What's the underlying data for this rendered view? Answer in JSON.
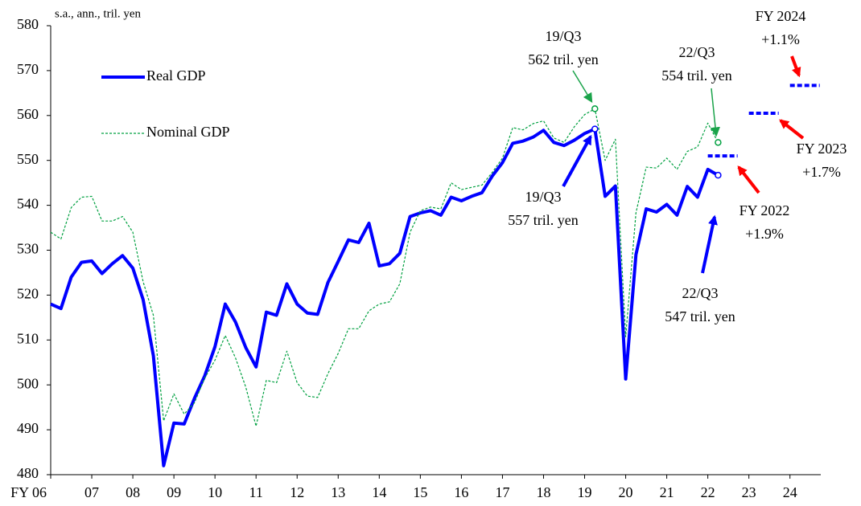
{
  "chart_data": {
    "type": "line",
    "unit_label": "s.a., ann., tril.  yen",
    "xlim": [
      2006,
      2024.75
    ],
    "xticks": [
      {
        "value": 2006,
        "label": "FY 06"
      },
      {
        "value": 2007,
        "label": "07"
      },
      {
        "value": 2008,
        "label": "08"
      },
      {
        "value": 2009,
        "label": "09"
      },
      {
        "value": 2010,
        "label": "10"
      },
      {
        "value": 2011,
        "label": "11"
      },
      {
        "value": 2012,
        "label": "12"
      },
      {
        "value": 2013,
        "label": "13"
      },
      {
        "value": 2014,
        "label": "14"
      },
      {
        "value": 2015,
        "label": "15"
      },
      {
        "value": 2016,
        "label": "16"
      },
      {
        "value": 2017,
        "label": "17"
      },
      {
        "value": 2018,
        "label": "18"
      },
      {
        "value": 2019,
        "label": "19"
      },
      {
        "value": 2020,
        "label": "20"
      },
      {
        "value": 2021,
        "label": "21"
      },
      {
        "value": 2022,
        "label": "22"
      },
      {
        "value": 2023,
        "label": "23"
      },
      {
        "value": 2024,
        "label": "24"
      }
    ],
    "ylim": [
      480,
      580
    ],
    "yticks": [
      480,
      490,
      500,
      510,
      520,
      530,
      540,
      550,
      560,
      570,
      580
    ],
    "x": [
      2006,
      2006.25,
      2006.5,
      2006.75,
      2007,
      2007.25,
      2007.5,
      2007.75,
      2008,
      2008.25,
      2008.5,
      2008.75,
      2009,
      2009.25,
      2009.5,
      2009.75,
      2010,
      2010.25,
      2010.5,
      2010.75,
      2011,
      2011.25,
      2011.5,
      2011.75,
      2012,
      2012.25,
      2012.5,
      2012.75,
      2013,
      2013.25,
      2013.5,
      2013.75,
      2014,
      2014.25,
      2014.5,
      2014.75,
      2015,
      2015.25,
      2015.5,
      2015.75,
      2016,
      2016.25,
      2016.5,
      2016.75,
      2017,
      2017.25,
      2017.5,
      2017.75,
      2018,
      2018.25,
      2018.5,
      2018.75,
      2019,
      2019.25,
      2019.5,
      2019.75,
      2020,
      2020.25,
      2020.5,
      2020.75,
      2021,
      2021.25,
      2021.5,
      2021.75,
      2022,
      2022.25
    ],
    "series": [
      {
        "name": "Real GDP",
        "color": "#0000ff",
        "values": [
          518,
          517,
          524,
          527.3,
          527.6,
          524.8,
          527,
          528.8,
          526,
          519,
          506.5,
          482,
          491.5,
          491.3,
          497,
          502,
          508.5,
          518,
          514,
          508.3,
          504,
          516.2,
          515.5,
          522.5,
          518,
          516,
          515.7,
          522.8,
          527.5,
          532.3,
          531.7,
          536,
          526.5,
          527,
          529.3,
          537.5,
          538.3,
          538.8,
          537.8,
          541.8,
          541,
          542,
          542.8,
          546.5,
          549.5,
          553.8,
          554.3,
          555.2,
          556.7,
          554,
          553.3,
          554.5,
          556,
          557,
          542,
          544.3,
          501.3,
          529,
          539.2,
          538.5,
          540.2,
          537.8,
          544.2,
          541.8,
          548,
          546.7
        ]
      },
      {
        "name": "Nominal GDP",
        "color": "#00a040",
        "values": [
          534,
          532.5,
          539.5,
          541.8,
          542,
          536.5,
          536.5,
          537.5,
          534,
          523,
          515.5,
          492,
          498,
          493.5,
          496,
          501.5,
          505.5,
          511,
          506,
          499.5,
          490.8,
          501,
          500.5,
          507.5,
          500.5,
          497.5,
          497.2,
          502.5,
          507,
          512.5,
          512.5,
          516.5,
          518,
          518.5,
          522.5,
          534,
          538.8,
          539.6,
          539.2,
          545,
          543.5,
          544,
          544.5,
          547.3,
          550.5,
          557.3,
          556.8,
          558.2,
          558.8,
          555,
          554,
          557.5,
          560.2,
          561.5,
          550,
          554.7,
          510.7,
          538.3,
          548.5,
          548.3,
          550.5,
          548,
          552,
          553,
          558.3,
          554
        ]
      }
    ],
    "forecast": {
      "color": "#0000ff",
      "x": [
        2022,
        2023,
        2024
      ],
      "values": [
        551,
        560.5,
        566.7
      ]
    },
    "annotations": [
      {
        "lines": [
          "19/Q3",
          "562 tril.  yen"
        ],
        "color": "#1aa34a",
        "series": 1,
        "index": 53
      },
      {
        "lines": [
          "22/Q3",
          "554 tril.  yen"
        ],
        "color": "#1aa34a",
        "series": 1,
        "index": 65
      },
      {
        "lines": [
          "19/Q3",
          "557 tril.  yen"
        ],
        "color": "#0000ff",
        "series": 0,
        "index": 53
      },
      {
        "lines": [
          "22/Q3",
          "547 tril.  yen"
        ],
        "color": "#0000ff",
        "series": 0,
        "index": 65
      },
      {
        "lines": [
          "FY 2022",
          "+1.9%"
        ],
        "color": "#ff0000",
        "forecast": 0
      },
      {
        "lines": [
          "FY 2023",
          "+1.7%"
        ],
        "color": "#ff0000",
        "forecast": 1
      },
      {
        "lines": [
          "FY 2024",
          "+1.1%"
        ],
        "color": "#ff0000",
        "forecast": 2
      }
    ]
  }
}
